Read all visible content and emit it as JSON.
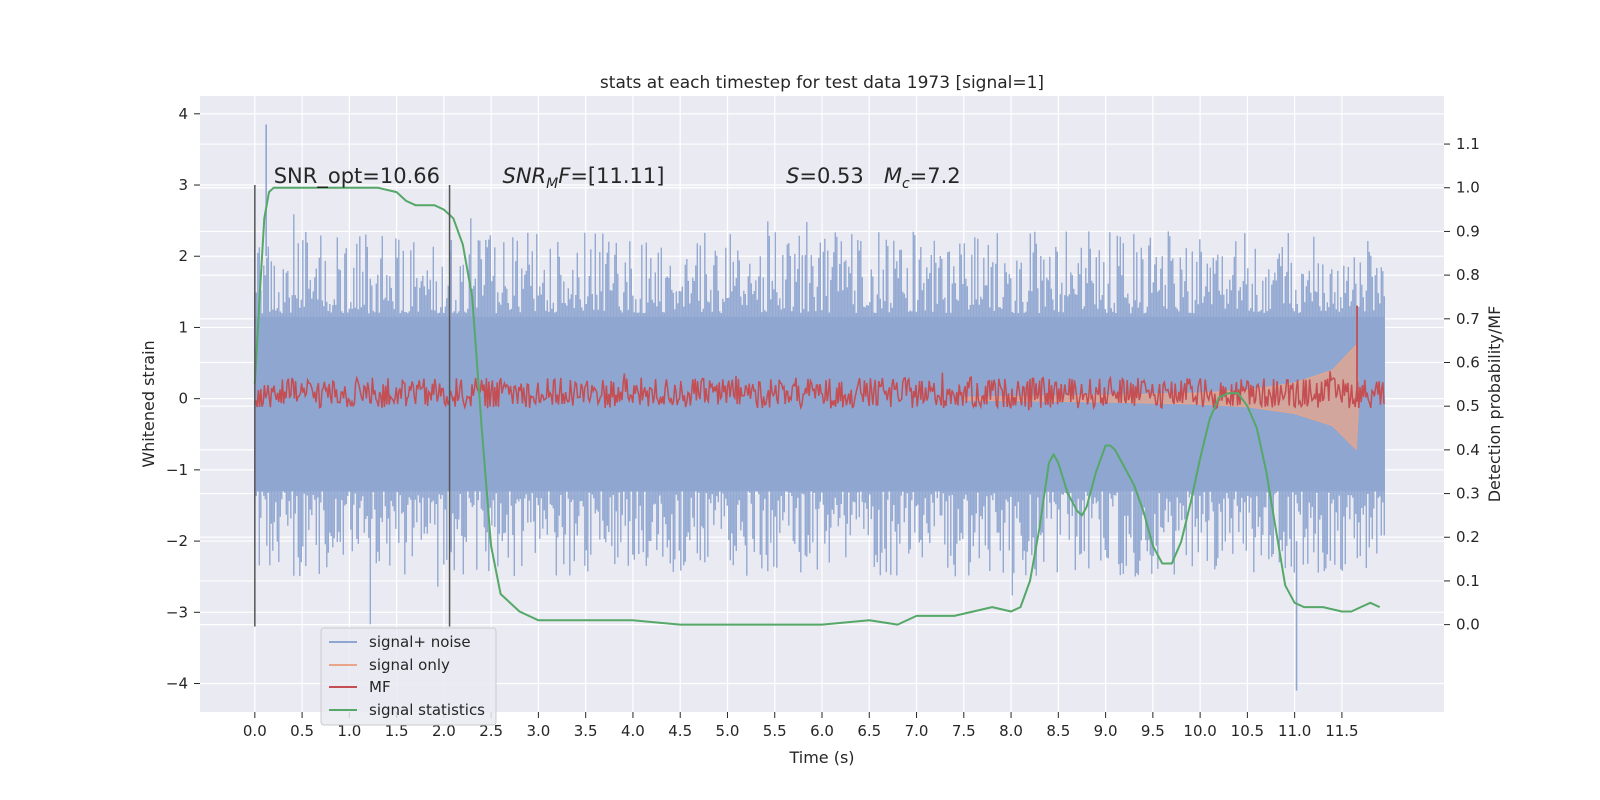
{
  "chart_data": {
    "type": "line",
    "title": "stats at each timestep for test data 1973 [signal=1]",
    "xlabel": "Time (s)",
    "ylabel_left": "Whitened strain",
    "ylabel_right": "Detection probability/MF",
    "xlim": [
      -0.58,
      12.58
    ],
    "ylim_left": [
      -4.4,
      4.25
    ],
    "ylim_right": [
      -0.2,
      1.21
    ],
    "x_ticks": [
      0.0,
      0.5,
      1.0,
      1.5,
      2.0,
      2.5,
      3.0,
      3.5,
      4.0,
      4.5,
      5.0,
      5.5,
      6.0,
      6.5,
      7.0,
      7.5,
      8.0,
      8.5,
      9.0,
      9.5,
      10.0,
      10.5,
      11.0,
      11.5
    ],
    "x_tick_labels": [
      "0.0",
      "0.5",
      "1.0",
      "1.5",
      "2.0",
      "2.5",
      "3.0",
      "3.5",
      "4.0",
      "4.5",
      "5.0",
      "5.5",
      "6.0",
      "6.5",
      "7.0",
      "7.5",
      "8.0",
      "8.5",
      "9.0",
      "9.5",
      "10.0",
      "10.5",
      "11.0",
      "11.5"
    ],
    "y_left_ticks": [
      -4,
      -3,
      -2,
      -1,
      0,
      1,
      2,
      3,
      4
    ],
    "y_left_tick_labels": [
      "−4",
      "−3",
      "−2",
      "−1",
      "0",
      "1",
      "2",
      "3",
      "4"
    ],
    "y_right_ticks": [
      0.0,
      0.1,
      0.2,
      0.3,
      0.4,
      0.5,
      0.6,
      0.7,
      0.8,
      0.9,
      1.0,
      1.1
    ],
    "y_right_tick_labels": [
      "0.0",
      "0.1",
      "0.2",
      "0.3",
      "0.4",
      "0.5",
      "0.6",
      "0.7",
      "0.8",
      "0.9",
      "1.0",
      "1.1"
    ],
    "grid": true,
    "legend_position": "lower-left",
    "vlines": [
      {
        "x": 0.0,
        "y_from": -3.2,
        "y_to": 3.0
      },
      {
        "x": 2.06,
        "y_from": -3.2,
        "y_to": 3.0
      }
    ],
    "annotations": [
      {
        "text": "SNR_opt=10.66",
        "x": 0.2,
        "y": 3.03
      },
      {
        "text": "SNR_MF=[11.11]",
        "x": 2.62,
        "y": 3.03
      },
      {
        "text": "S=0.53   M_c=7.2",
        "x": 5.62,
        "y": 3.03
      }
    ],
    "series": [
      {
        "name": "signal+ noise",
        "axis": "left",
        "color": "#8fa6d1",
        "style": "noise-band",
        "x_range": [
          0.0,
          11.95
        ],
        "core_band": [
          -1.3,
          1.15
        ],
        "spike_max": 3.85,
        "spike_min": -4.1
      },
      {
        "name": "signal only",
        "axis": "left",
        "color": "#e8a589",
        "style": "chirp-envelope",
        "envelope_points": [
          {
            "x": 7.5,
            "y": 0.02
          },
          {
            "x": 9.0,
            "y": 0.05
          },
          {
            "x": 10.0,
            "y": 0.08
          },
          {
            "x": 10.5,
            "y": 0.12
          },
          {
            "x": 11.0,
            "y": 0.22
          },
          {
            "x": 11.4,
            "y": 0.4
          },
          {
            "x": 11.65,
            "y": 0.75
          },
          {
            "x": 11.68,
            "y": 0.0
          }
        ]
      },
      {
        "name": "MF",
        "axis": "right",
        "color": "#c44e52",
        "style": "noisy-line",
        "x_range": [
          0.0,
          11.95
        ],
        "baseline": 0.53,
        "spread": 0.035,
        "peak": {
          "x": 11.66,
          "y": 0.73
        }
      },
      {
        "name": "signal statistics",
        "axis": "right",
        "color": "#55a868",
        "x": [
          0.0,
          0.05,
          0.1,
          0.15,
          0.2,
          0.3,
          0.5,
          1.0,
          1.3,
          1.5,
          1.6,
          1.7,
          1.8,
          1.9,
          2.0,
          2.1,
          2.2,
          2.3,
          2.4,
          2.5,
          2.6,
          2.8,
          3.0,
          3.5,
          4.0,
          4.5,
          5.0,
          5.5,
          6.0,
          6.5,
          6.8,
          7.0,
          7.2,
          7.4,
          7.6,
          7.8,
          8.0,
          8.1,
          8.2,
          8.3,
          8.4,
          8.45,
          8.5,
          8.6,
          8.7,
          8.75,
          8.8,
          8.9,
          9.0,
          9.05,
          9.1,
          9.2,
          9.3,
          9.4,
          9.5,
          9.6,
          9.7,
          9.8,
          9.9,
          10.0,
          10.1,
          10.2,
          10.3,
          10.4,
          10.5,
          10.6,
          10.7,
          10.8,
          10.9,
          11.0,
          11.1,
          11.3,
          11.5,
          11.6,
          11.7,
          11.8,
          11.9
        ],
        "y": [
          0.55,
          0.75,
          0.93,
          0.99,
          1.0,
          1.0,
          1.0,
          1.0,
          1.0,
          0.99,
          0.97,
          0.96,
          0.96,
          0.96,
          0.95,
          0.93,
          0.87,
          0.75,
          0.45,
          0.18,
          0.07,
          0.03,
          0.01,
          0.01,
          0.01,
          0.0,
          0.0,
          0.0,
          0.0,
          0.01,
          0.0,
          0.02,
          0.02,
          0.02,
          0.03,
          0.04,
          0.03,
          0.04,
          0.1,
          0.22,
          0.37,
          0.39,
          0.37,
          0.3,
          0.26,
          0.25,
          0.27,
          0.35,
          0.41,
          0.41,
          0.4,
          0.36,
          0.32,
          0.26,
          0.18,
          0.14,
          0.14,
          0.19,
          0.28,
          0.38,
          0.47,
          0.52,
          0.53,
          0.53,
          0.5,
          0.45,
          0.35,
          0.22,
          0.09,
          0.05,
          0.04,
          0.04,
          0.03,
          0.03,
          0.04,
          0.05,
          0.04
        ]
      }
    ]
  }
}
